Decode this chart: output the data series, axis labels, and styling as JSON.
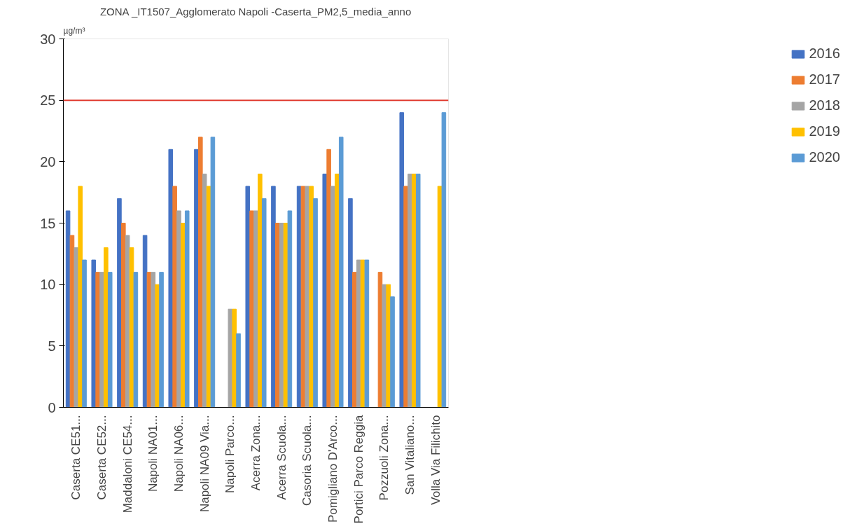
{
  "chart_data": {
    "type": "bar",
    "title": "ZONA _IT1507_Agglomerato Napoli -Caserta_PM2,5_media_anno",
    "ylabel": "µg/m³",
    "categories": [
      "Caserta CE51...",
      "Caserta CE52...",
      "Maddaloni CE54...",
      "Napoli NA01...",
      "Napoli NA06...",
      "Napoli NA09 Via...",
      "Napoli Parco...",
      "Acerra Zona...",
      "Acerra Scuola...",
      "Casoria Scuola...",
      "Pomigliano D'Arco...",
      "Portici Parco Reggia",
      "Pozzuoli Zona...",
      "San Vitaliano...",
      "Volla Via Filichito"
    ],
    "series": [
      {
        "name": "2016",
        "color": "#4472c4",
        "values": [
          16,
          12,
          17,
          14,
          21,
          21,
          null,
          18,
          18,
          18,
          19,
          17,
          null,
          24,
          null
        ]
      },
      {
        "name": "2017",
        "color": "#ed7d31",
        "values": [
          14,
          11,
          15,
          11,
          18,
          22,
          null,
          16,
          15,
          18,
          21,
          11,
          11,
          18,
          null
        ]
      },
      {
        "name": "2018",
        "color": "#a5a5a5",
        "values": [
          13,
          11,
          14,
          11,
          16,
          19,
          8,
          16,
          15,
          18,
          18,
          12,
          10,
          19,
          null
        ]
      },
      {
        "name": "2019",
        "color": "#ffc000",
        "values": [
          18,
          13,
          13,
          10,
          15,
          18,
          8,
          19,
          15,
          18,
          19,
          12,
          10,
          19,
          18
        ]
      },
      {
        "name": "2020",
        "color": "#5b9bd5",
        "values": [
          12,
          11,
          11,
          11,
          16,
          22,
          6,
          17,
          16,
          17,
          22,
          12,
          9,
          19,
          24
        ]
      }
    ],
    "ylim": [
      0,
      30
    ],
    "yticks": [
      0,
      5,
      10,
      15,
      20,
      25,
      30
    ],
    "ref_lines": [
      {
        "axis": "y",
        "value": 25,
        "color": "#e03c31"
      }
    ],
    "grid": false,
    "legend": "right"
  }
}
